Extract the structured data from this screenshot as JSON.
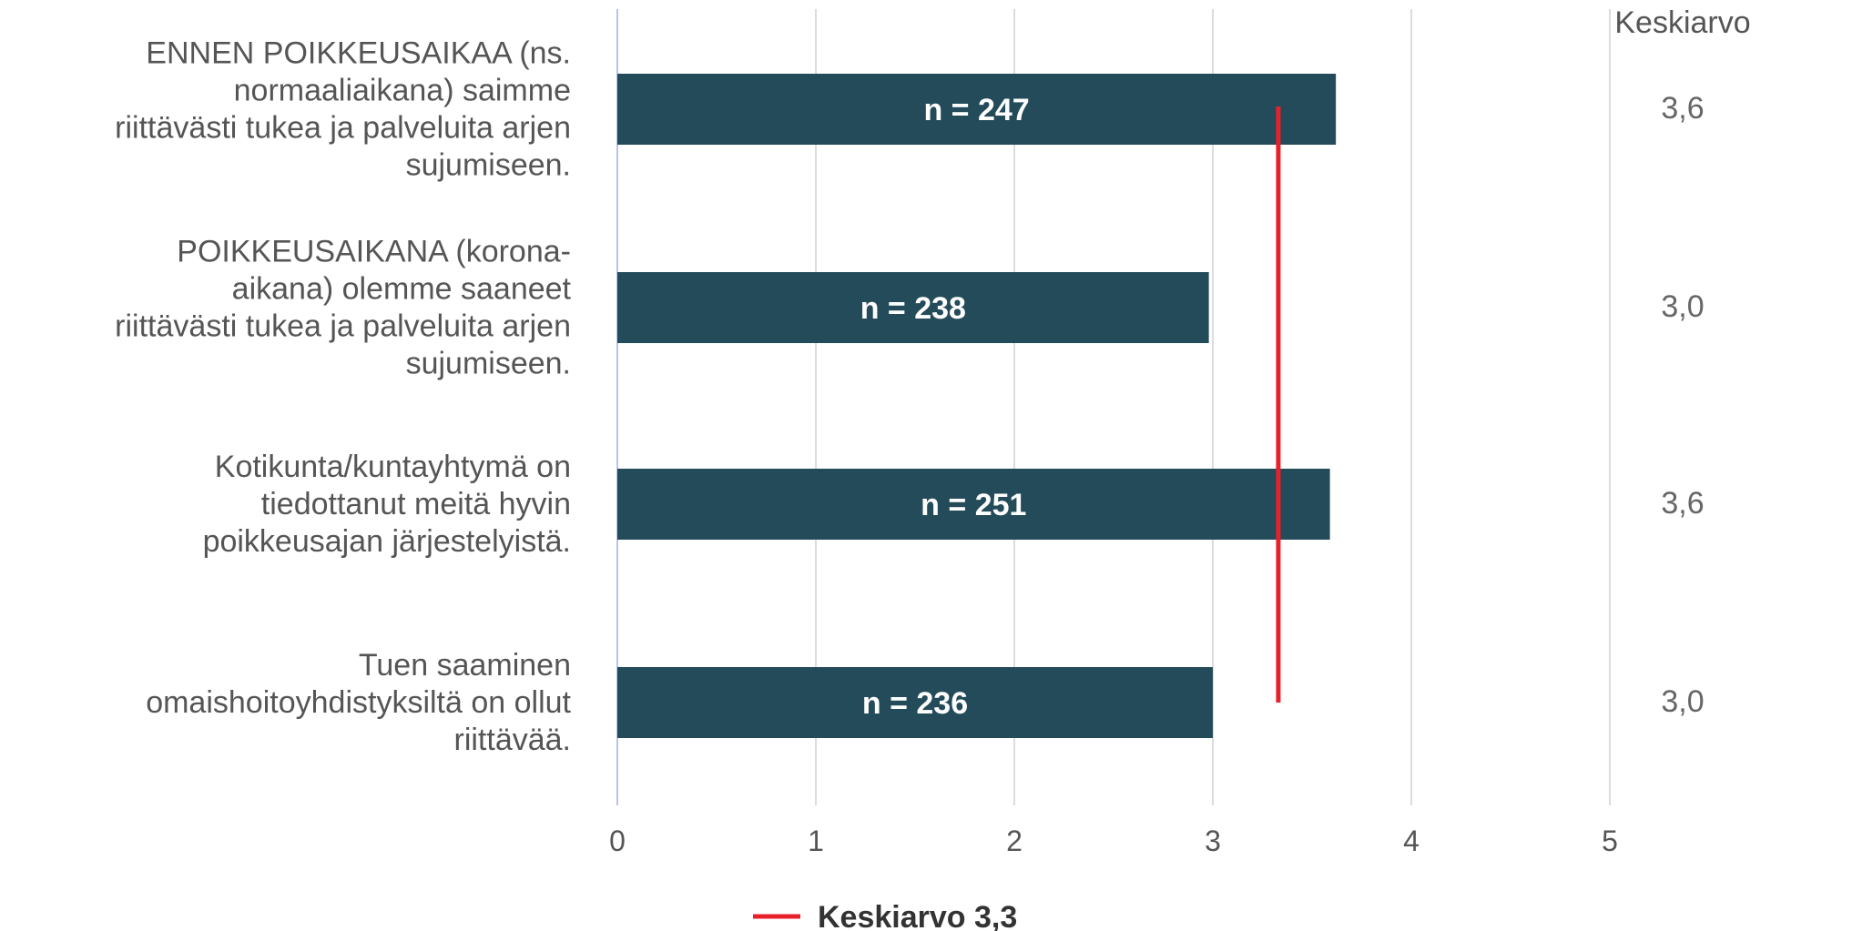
{
  "chart_data": {
    "type": "bar",
    "orientation": "horizontal",
    "categories": [
      [
        "ENNEN POIKKEUSAIKAA (ns.",
        "normaaliaikana) saimme",
        "riittävästi tukea ja palveluita arjen",
        "sujumiseen."
      ],
      [
        "POIKKEUSAIKANA (korona-",
        "aikana) olemme saaneet",
        "riittävästi tukea ja palveluita arjen",
        "sujumiseen."
      ],
      [
        "Kotikunta/kuntayhtymä on",
        "tiedottanut meitä hyvin",
        "poikkeusajan järjestelyistä."
      ],
      [
        "Tuen saaminen",
        "omaishoitoyhdistyksiltä on ollut",
        "riittävää."
      ]
    ],
    "values": [
      3.62,
      2.98,
      3.59,
      3.0
    ],
    "n_labels": [
      "n = 247",
      "n = 238",
      "n = 251",
      "n = 236"
    ],
    "mean_header": "Keskiarvo",
    "mean_values": [
      "3,6",
      "3,0",
      "3,6",
      "3,0"
    ],
    "xlim": [
      0,
      5
    ],
    "xticks": [
      "0",
      "1",
      "2",
      "3",
      "4",
      "5"
    ],
    "grid": true,
    "reference_line": {
      "label": "Keskiarvo 3,3",
      "value": 3.33,
      "color": "#e8202a"
    },
    "legend_position": "bottom-left",
    "colors": {
      "bar": "#234b5a",
      "grid": "#dcdcdc",
      "zero_axis": "#b9c3ec"
    }
  }
}
